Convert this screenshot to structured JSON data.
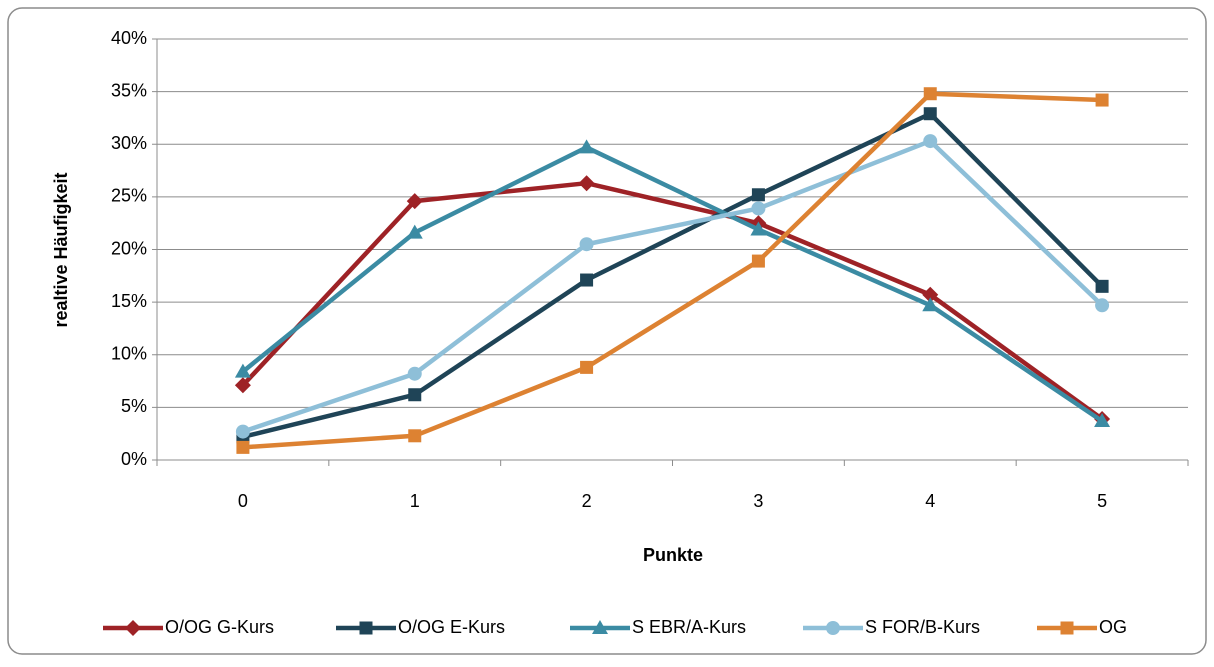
{
  "chart_data": {
    "type": "line",
    "categories": [
      "0",
      "1",
      "2",
      "3",
      "4",
      "5"
    ],
    "xlabel": "Punkte",
    "ylabel": "realtive Häufigkeit",
    "ylim": [
      0,
      40
    ],
    "yticks": [
      {
        "value": 0,
        "label": "0%"
      },
      {
        "value": 5,
        "label": "5%"
      },
      {
        "value": 10,
        "label": "10%"
      },
      {
        "value": 15,
        "label": "15%"
      },
      {
        "value": 20,
        "label": "20%"
      },
      {
        "value": 25,
        "label": "25%"
      },
      {
        "value": 30,
        "label": "30%"
      },
      {
        "value": 35,
        "label": "35%"
      },
      {
        "value": 40,
        "label": "40%"
      }
    ],
    "grid": true,
    "legend": "bottom",
    "series": [
      {
        "name": "O/OG G-Kurs",
        "color": "#9e2226",
        "marker": "diamond",
        "values": [
          7.1,
          24.6,
          26.3,
          22.5,
          15.7,
          3.9
        ]
      },
      {
        "name": "O/OG E-Kurs",
        "color": "#1f4457",
        "marker": "square",
        "values": [
          2.2,
          6.2,
          17.1,
          25.2,
          32.9,
          16.5
        ]
      },
      {
        "name": "S EBR/A-Kurs",
        "color": "#3b8ba3",
        "marker": "triangle",
        "values": [
          8.4,
          21.6,
          29.7,
          21.9,
          14.7,
          3.7
        ]
      },
      {
        "name": "S FOR/B-Kurs",
        "color": "#8ebfd8",
        "marker": "circle",
        "values": [
          2.7,
          8.2,
          20.5,
          23.9,
          30.3,
          14.7
        ]
      },
      {
        "name": "OG",
        "color": "#dd8232",
        "marker": "square",
        "values": [
          1.2,
          2.3,
          8.8,
          18.9,
          34.8,
          34.2
        ]
      }
    ]
  }
}
